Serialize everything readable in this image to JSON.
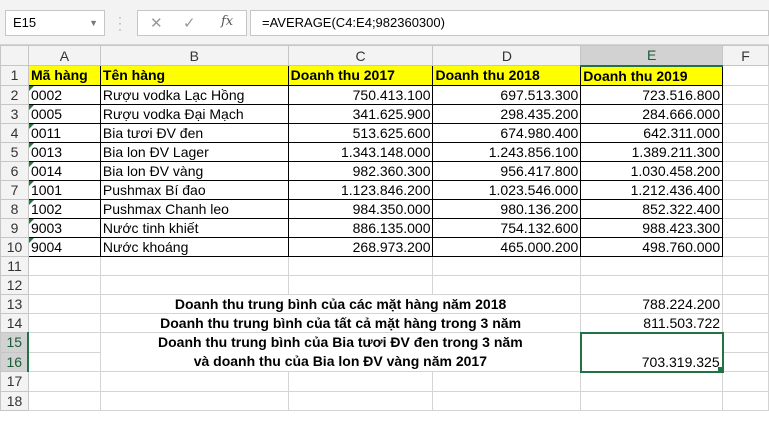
{
  "formula_bar": {
    "name_box": "E15",
    "formula": "=AVERAGE(C4:E4;982360300)",
    "cancel_icon": "✕",
    "enter_icon": "✓",
    "fx_label": "fx"
  },
  "columns": [
    "A",
    "B",
    "C",
    "D",
    "E",
    "F"
  ],
  "rows": [
    "1",
    "2",
    "3",
    "4",
    "5",
    "6",
    "7",
    "8",
    "9",
    "10",
    "11",
    "12",
    "13",
    "14",
    "15",
    "16",
    "17",
    "18"
  ],
  "headers": [
    "Mã hàng",
    "Tên hàng",
    "Doanh thu 2017",
    "Doanh thu 2018",
    "Doanh thu 2019"
  ],
  "data": [
    [
      "0002",
      "Rượu vodka Lạc Hồng",
      "750.413.100",
      "697.513.300",
      "723.516.800"
    ],
    [
      "0005",
      "Rượu vodka Đại Mạch",
      "341.625.900",
      "298.435.200",
      "284.666.000"
    ],
    [
      "0011",
      "Bia tươi ĐV đen",
      "513.625.600",
      "674.980.400",
      "642.311.000"
    ],
    [
      "0013",
      "Bia lon ĐV Lager",
      "1.343.148.000",
      "1.243.856.100",
      "1.389.211.300"
    ],
    [
      "0014",
      "Bia lon ĐV vàng",
      "982.360.300",
      "956.417.800",
      "1.030.458.200"
    ],
    [
      "1001",
      "Pushmax Bí đao",
      "1.123.846.200",
      "1.023.546.000",
      "1.212.436.400"
    ],
    [
      "1002",
      "Pushmax Chanh leo",
      "984.350.000",
      "980.136.200",
      "852.322.400"
    ],
    [
      "9003",
      "Nước tinh khiết",
      "886.135.000",
      "754.132.600",
      "988.423.300"
    ],
    [
      "9004",
      "Nước khoáng",
      "268.973.200",
      "465.000.200",
      "498.760.000"
    ]
  ],
  "summary": [
    {
      "label": "Doanh thu trung bình của các mặt hàng năm 2018",
      "value": "788.224.200"
    },
    {
      "label": "Doanh thu trung bình của tất cả mặt hàng trong 3 năm",
      "value": "811.503.722"
    },
    {
      "label_line1": "Doanh thu trung bình của Bia tươi ĐV đen trong 3 năm",
      "label_line2": "và doanh thu của Bia lon ĐV vàng năm 2017",
      "value": "703.319.325"
    }
  ],
  "selected_cell": "E15"
}
